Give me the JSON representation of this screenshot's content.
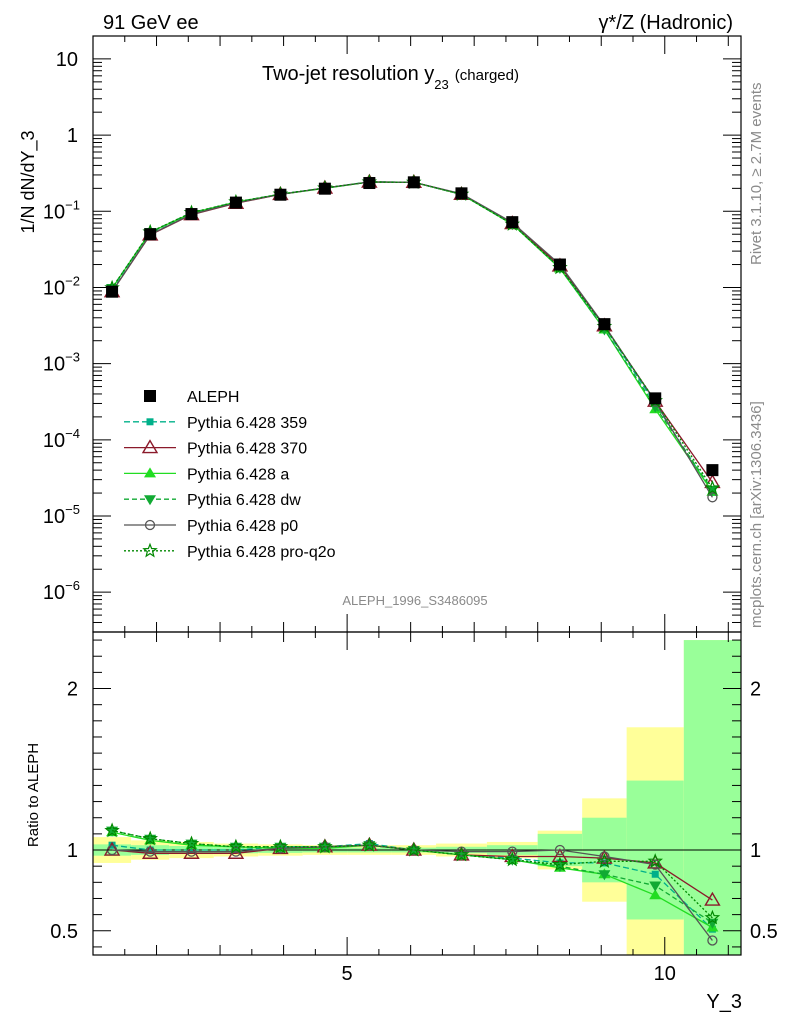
{
  "header": {
    "left": "91 GeV ee",
    "right": "γ*/Z (Hadronic)"
  },
  "side_labels": {
    "rivet": "Rivet 3.1.10, ≥ 2.7M events",
    "mcplots": "mcplots.cern.ch [arXiv:1306.3436]"
  },
  "chart_data": {
    "type": "line",
    "title": "Two-jet resolution y",
    "title_sub": "23",
    "title_suffix": "(charged)",
    "analysis_label": "ALEPH_1996_S3486095",
    "xlabel": "Y_3",
    "ylabel_main": "1/N dN/dY_3",
    "ylabel_ratio": "Ratio to ALEPH",
    "xlim": [
      1.0,
      11.2
    ],
    "ylim_main": [
      3e-07,
      20
    ],
    "ylim_ratio": [
      0.35,
      2.35
    ],
    "log_y_main": true,
    "grid": false,
    "legend_position": "bottom-left",
    "x_ticks": [
      5,
      10
    ],
    "x_tick_labels": [
      "5",
      "10"
    ],
    "y_ticks_main": [
      1e-06,
      1e-05,
      0.0001,
      0.001,
      0.01,
      0.1,
      1,
      10
    ],
    "y_tick_labels_main": [
      {
        "base": "10",
        "exp": "−6"
      },
      {
        "base": "10",
        "exp": "−5"
      },
      {
        "base": "10",
        "exp": "−4"
      },
      {
        "base": "10",
        "exp": "−3"
      },
      {
        "base": "10",
        "exp": "−2"
      },
      {
        "base": "10",
        "exp": "−1"
      },
      {
        "base": "1",
        "exp": ""
      },
      {
        "base": "10",
        "exp": ""
      }
    ],
    "y_ticks_ratio": [
      0.5,
      1,
      2
    ],
    "y_tick_labels_ratio": [
      "0.5",
      "1",
      "2"
    ],
    "bin_edges": [
      1.0,
      1.6,
      2.2,
      2.9,
      3.6,
      4.3,
      5.0,
      5.7,
      6.4,
      7.2,
      8.0,
      8.7,
      9.4,
      10.3,
      11.2
    ],
    "x": [
      1.3,
      1.9,
      2.55,
      3.25,
      3.95,
      4.65,
      5.35,
      6.05,
      6.8,
      7.6,
      8.35,
      9.05,
      9.85,
      10.75
    ],
    "data": {
      "name": "ALEPH",
      "values": [
        0.0088,
        0.05,
        0.092,
        0.13,
        0.165,
        0.198,
        0.235,
        0.24,
        0.172,
        0.072,
        0.02,
        0.0033,
        0.00035,
        4e-05
      ]
    },
    "bands": {
      "inner_color": "#99ff99",
      "outer_color": "#ffff99",
      "inner_halfwidth": [
        0.035,
        0.03,
        0.025,
        0.02,
        0.018,
        0.015,
        0.015,
        0.015,
        0.02,
        0.03,
        0.1,
        0.2,
        0.43,
        1.3
      ],
      "outer_halfwidth": [
        0.08,
        0.06,
        0.05,
        0.04,
        0.035,
        0.03,
        0.03,
        0.03,
        0.04,
        0.05,
        0.12,
        0.32,
        0.76,
        1.3
      ]
    },
    "series": [
      {
        "name": "Pythia 6.428 359",
        "color": "#00b08a",
        "dash": "6,3",
        "marker": "square",
        "ratio": [
          1.03,
          1.0,
          1.0,
          1.0,
          1.02,
          1.02,
          1.04,
          1.0,
          0.97,
          0.95,
          0.92,
          0.92,
          0.85,
          0.51
        ]
      },
      {
        "name": "Pythia 6.428 370",
        "color": "#8b1a2b",
        "dash": "",
        "marker": "triangle-open",
        "ratio": [
          1.0,
          0.98,
          0.98,
          0.98,
          1.01,
          1.02,
          1.03,
          1.0,
          0.97,
          0.96,
          0.96,
          0.95,
          0.92,
          0.69
        ]
      },
      {
        "name": "Pythia 6.428 a",
        "color": "#22dd22",
        "dash": "",
        "marker": "triangle",
        "ratio": [
          1.11,
          1.06,
          1.03,
          1.02,
          1.01,
          1.01,
          1.03,
          1.0,
          0.97,
          0.94,
          0.89,
          0.85,
          0.72,
          0.52
        ]
      },
      {
        "name": "Pythia 6.428 dw",
        "color": "#11aa33",
        "dash": "5,3",
        "marker": "triangle-down",
        "ratio": [
          1.12,
          1.07,
          1.04,
          1.02,
          1.02,
          1.02,
          1.03,
          1.0,
          0.97,
          0.94,
          0.9,
          0.85,
          0.78,
          0.55
        ]
      },
      {
        "name": "Pythia 6.428 p0",
        "color": "#555555",
        "dash": "",
        "marker": "circle-open",
        "ratio": [
          1.0,
          0.99,
          0.99,
          0.99,
          1.01,
          1.02,
          1.03,
          1.0,
          0.99,
          0.99,
          1.0,
          0.96,
          0.91,
          0.44
        ]
      },
      {
        "name": "Pythia 6.428 pro-q2o",
        "color": "#008800",
        "dash": "2,2",
        "marker": "star",
        "ratio": [
          1.12,
          1.07,
          1.04,
          1.02,
          1.02,
          1.02,
          1.03,
          1.0,
          0.97,
          0.94,
          0.91,
          0.93,
          0.93,
          0.58
        ]
      }
    ]
  }
}
